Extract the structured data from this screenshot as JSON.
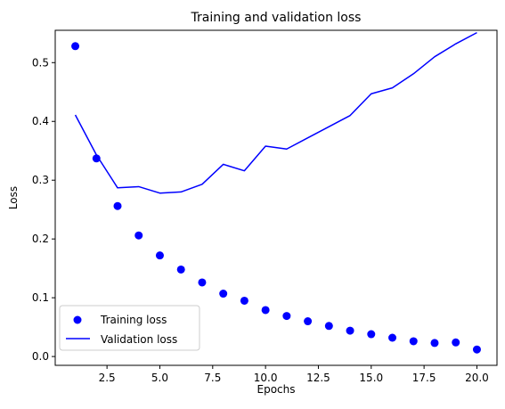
{
  "chart_data": {
    "type": "line",
    "title": "Training and validation loss",
    "xlabel": "Epochs",
    "ylabel": "Loss",
    "xlim": [
      0.05,
      20.95
    ],
    "ylim": [
      -0.015,
      0.555
    ],
    "x_ticks": [
      2.5,
      5.0,
      7.5,
      10.0,
      12.5,
      15.0,
      17.5,
      20.0
    ],
    "x_tick_labels": [
      "2.5",
      "5.0",
      "7.5",
      "10.0",
      "12.5",
      "15.0",
      "17.5",
      "20.0"
    ],
    "y_ticks": [
      0.0,
      0.1,
      0.2,
      0.3,
      0.4,
      0.5
    ],
    "y_tick_labels": [
      "0.0",
      "0.1",
      "0.2",
      "0.3",
      "0.4",
      "0.5"
    ],
    "grid": false,
    "legend_position": "lower-left",
    "series": [
      {
        "name": "Training loss",
        "style": "points",
        "color": "#0000ff",
        "x": [
          1,
          2,
          3,
          4,
          5,
          6,
          7,
          8,
          9,
          10,
          11,
          12,
          13,
          14,
          15,
          16,
          17,
          18,
          19,
          20
        ],
        "values": [
          0.528,
          0.337,
          0.256,
          0.206,
          0.172,
          0.148,
          0.126,
          0.107,
          0.095,
          0.079,
          0.069,
          0.06,
          0.052,
          0.044,
          0.038,
          0.032,
          0.026,
          0.023,
          0.024,
          0.012
        ]
      },
      {
        "name": "Validation loss",
        "style": "line",
        "color": "#0000ff",
        "x": [
          1,
          2,
          3,
          4,
          5,
          6,
          7,
          8,
          9,
          10,
          11,
          12,
          13,
          14,
          15,
          16,
          17,
          18,
          19,
          20
        ],
        "values": [
          0.411,
          0.343,
          0.287,
          0.289,
          0.278,
          0.28,
          0.293,
          0.327,
          0.316,
          0.358,
          0.353,
          0.372,
          0.391,
          0.41,
          0.447,
          0.457,
          0.481,
          0.51,
          0.532,
          0.551
        ]
      }
    ]
  }
}
